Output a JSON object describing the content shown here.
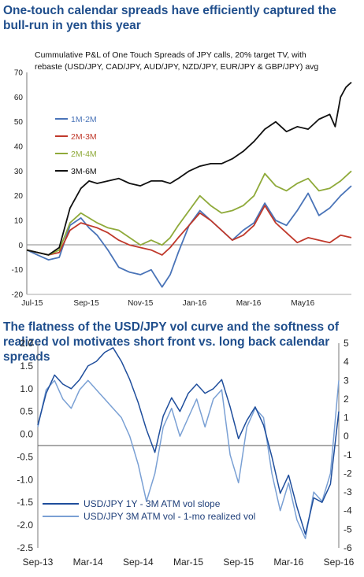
{
  "top_headline": "One-touch calendar spreads have efficiently captured the bull-run in yen this year",
  "bottom_headline": "The flatness of the USD/JPY vol curve and the softness of realized vol motivates short front vs. long back calendar spreads",
  "chart_data": [
    {
      "type": "line",
      "title": "Cummulative P&L of One Touch Spreads of JPY calls, 20% target TV, with rebaste (USD/JPY, CAD/JPY, AUD/JPY, NZD/JPY, EUR/JPY & GBP/JPY) avg",
      "xlabel": "",
      "ylabel": "",
      "ylim": [
        -20,
        70
      ],
      "yticks": [
        -20,
        -10,
        0,
        10,
        20,
        30,
        40,
        50,
        60,
        70
      ],
      "x_tick_labels": [
        "Jul-15",
        "Sep-15",
        "Nov-15",
        "Jan-16",
        "Mar-16",
        "May16"
      ],
      "xlim_months": [
        0,
        12
      ],
      "grid": false,
      "legend_position": "left",
      "series": [
        {
          "name": "1M-2M",
          "color": "#4a74b8",
          "x": [
            0,
            0.4,
            0.8,
            1.2,
            1.6,
            2.0,
            2.3,
            2.6,
            3.0,
            3.4,
            3.8,
            4.2,
            4.6,
            5.0,
            5.3,
            5.6,
            6.0,
            6.4,
            6.8,
            7.2,
            7.6,
            8.0,
            8.4,
            8.8,
            9.2,
            9.6,
            10.0,
            10.4,
            10.8,
            11.2,
            11.6,
            12.0
          ],
          "y": [
            -2,
            -4,
            -6,
            -5,
            8,
            11,
            7,
            4,
            -2,
            -9,
            -11,
            -12,
            -10,
            -17,
            -12,
            -3,
            8,
            14,
            10,
            6,
            2,
            6,
            9,
            17,
            10,
            8,
            14,
            21,
            12,
            15,
            20,
            24
          ]
        },
        {
          "name": "2M-3M",
          "color": "#c0392b",
          "x": [
            0,
            0.4,
            0.8,
            1.2,
            1.6,
            2.0,
            2.3,
            2.6,
            3.0,
            3.4,
            3.8,
            4.2,
            4.6,
            5.0,
            5.3,
            5.6,
            6.0,
            6.4,
            6.8,
            7.2,
            7.6,
            8.0,
            8.4,
            8.8,
            9.2,
            9.6,
            10.0,
            10.4,
            10.8,
            11.2,
            11.6,
            12.0
          ],
          "y": [
            -2,
            -3,
            -4,
            -3,
            6,
            9,
            8,
            7,
            5,
            2,
            0,
            -1,
            -2,
            -4,
            -1,
            3,
            8,
            13,
            10,
            6,
            2,
            4,
            8,
            16,
            9,
            5,
            1,
            3,
            2,
            1,
            4,
            3
          ]
        },
        {
          "name": "2M-4M",
          "color": "#8faa3a",
          "x": [
            0,
            0.4,
            0.8,
            1.2,
            1.6,
            2.0,
            2.3,
            2.6,
            3.0,
            3.4,
            3.8,
            4.2,
            4.6,
            5.0,
            5.3,
            5.6,
            6.0,
            6.4,
            6.8,
            7.2,
            7.6,
            8.0,
            8.4,
            8.8,
            9.2,
            9.6,
            10.0,
            10.4,
            10.8,
            11.2,
            11.6,
            12.0
          ],
          "y": [
            -2,
            -3,
            -4,
            -2,
            9,
            13,
            11,
            9,
            7,
            6,
            3,
            0,
            2,
            0,
            3,
            8,
            14,
            20,
            16,
            13,
            14,
            16,
            20,
            29,
            24,
            22,
            25,
            27,
            22,
            23,
            26,
            30
          ]
        },
        {
          "name": "3M-6M",
          "color": "#111111",
          "x": [
            0,
            0.4,
            0.8,
            1.2,
            1.6,
            2.0,
            2.3,
            2.6,
            3.0,
            3.4,
            3.8,
            4.2,
            4.6,
            5.0,
            5.3,
            5.6,
            6.0,
            6.4,
            6.8,
            7.2,
            7.6,
            8.0,
            8.4,
            8.8,
            9.2,
            9.6,
            10.0,
            10.4,
            10.8,
            11.2,
            11.4,
            11.6,
            11.8,
            12.0
          ],
          "y": [
            -2,
            -3,
            -4,
            -1,
            15,
            23,
            26,
            25,
            26,
            27,
            25,
            24,
            26,
            26,
            25,
            27,
            30,
            32,
            33,
            33,
            35,
            38,
            42,
            47,
            50,
            46,
            48,
            47,
            51,
            53,
            48,
            60,
            64,
            66
          ]
        }
      ]
    },
    {
      "type": "line",
      "title": "",
      "xlabel": "",
      "ylabel": "",
      "ylim_left": [
        -2.5,
        2.0
      ],
      "ylim_right": [
        -6,
        5
      ],
      "yticks_left": [
        "2.0",
        "1.5",
        "1.0",
        "0.5",
        "0.0",
        "-0.5",
        "-1.0",
        "-1.5",
        "-2.0",
        "-2.5"
      ],
      "yticks_right": [
        "5",
        "4",
        "3",
        "2",
        "1",
        "0",
        "-1",
        "-2",
        "-3",
        "-4",
        "-5",
        "-6"
      ],
      "x_tick_labels": [
        "Sep-13",
        "Mar-14",
        "Sep-14",
        "Mar-15",
        "Sep-15",
        "Mar-16",
        "Sep-16"
      ],
      "xlim_months": [
        0,
        36
      ],
      "grid": false,
      "legend_position": "bottom-left",
      "series": [
        {
          "name": "USD/JPY 1Y - 3M ATM vol slope",
          "color": "#1f4e9c",
          "axis": "left",
          "x": [
            0,
            1,
            2,
            3,
            4,
            5,
            6,
            7,
            8,
            9,
            10,
            11,
            12,
            13,
            14,
            15,
            16,
            17,
            18,
            19,
            20,
            21,
            22,
            23,
            24,
            25,
            26,
            27,
            28,
            29,
            30,
            31,
            32,
            33,
            34,
            35,
            36
          ],
          "y": [
            0.2,
            0.9,
            1.3,
            1.1,
            1.0,
            1.2,
            1.5,
            1.6,
            1.8,
            1.9,
            1.6,
            1.2,
            0.7,
            0.1,
            -0.4,
            0.4,
            0.8,
            0.5,
            0.9,
            1.1,
            0.9,
            1.0,
            1.2,
            0.6,
            -0.1,
            0.3,
            0.6,
            0.2,
            -0.5,
            -1.3,
            -0.9,
            -1.6,
            -2.2,
            -1.4,
            -1.5,
            -1.1,
            0.5
          ]
        },
        {
          "name": "USD/JPY 3M ATM vol - 1-mo realized vol",
          "color": "#7aa0d4",
          "axis": "right",
          "x": [
            0,
            1,
            2,
            3,
            4,
            5,
            6,
            7,
            8,
            9,
            10,
            11,
            12,
            13,
            14,
            15,
            16,
            17,
            18,
            19,
            20,
            21,
            22,
            23,
            24,
            25,
            26,
            27,
            28,
            29,
            30,
            31,
            32,
            33,
            34,
            35,
            36
          ],
          "y": [
            0.5,
            2.5,
            3.0,
            2.0,
            1.5,
            2.5,
            3.0,
            2.5,
            2.0,
            1.5,
            1.0,
            0.0,
            -1.5,
            -3.5,
            -2.0,
            0.5,
            1.5,
            0.0,
            1.0,
            2.0,
            0.5,
            2.0,
            2.5,
            -1.0,
            -2.5,
            0.5,
            1.5,
            1.0,
            -2.0,
            -4.0,
            -2.5,
            -4.5,
            -5.5,
            -3.0,
            -3.5,
            -2.0,
            3.0
          ]
        }
      ]
    }
  ]
}
